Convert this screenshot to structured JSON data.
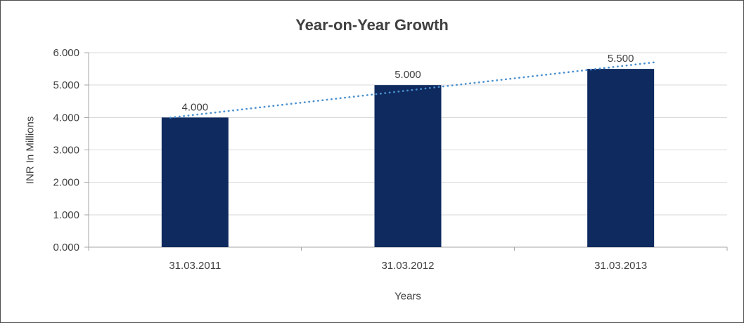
{
  "window": {
    "background": "#FFFFFF",
    "border_color": "#4D4D4D"
  },
  "chart_data": {
    "type": "bar",
    "title": "Year-on-Year Growth",
    "xlabel": "Years",
    "ylabel": "INR In Millions",
    "categories": [
      "31.03.2011",
      "31.03.2012",
      "31.03.2013"
    ],
    "values": [
      4.0,
      5.0,
      5.5
    ],
    "data_labels": [
      "4.000",
      "5.000",
      "5.500"
    ],
    "ylim": [
      0,
      6
    ],
    "ytick_step": 1,
    "ytick_labels": [
      "0.000",
      "1.000",
      "2.000",
      "3.000",
      "4.000",
      "5.000",
      "6.000"
    ],
    "grid": true,
    "legend": "none",
    "bar_color": "#0F2A5F",
    "trendline": {
      "type": "linear",
      "style": "dotted",
      "color": "#4A90D0"
    },
    "gridline_color": "#D9D9D9",
    "axis_color": "#A6A6A6",
    "text_color": "#404040",
    "title_color": "#404040"
  }
}
